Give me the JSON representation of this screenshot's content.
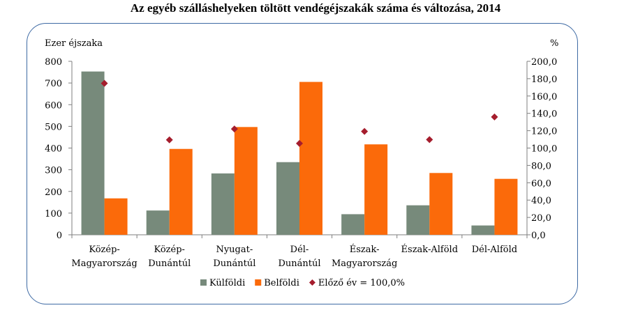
{
  "chart_data": {
    "type": "bar",
    "title": "Az egyéb szálláshelyeken töltött vendégéjszakák száma és változása, 2014",
    "ylabel_left": "Ezer éjszaka",
    "ylabel_right": "%",
    "categories": [
      [
        "Közép-",
        "Magyarország"
      ],
      [
        "Közép-",
        "Dunántúl"
      ],
      [
        "Nyugat-",
        "Dunántúl"
      ],
      [
        "Dél-",
        "Dunántúl"
      ],
      [
        "Észak-",
        "Magyarország"
      ],
      [
        "Észak-Alföld"
      ],
      [
        "Dél-Alföld"
      ]
    ],
    "series": [
      {
        "name": "Külföldi",
        "type": "bar",
        "axis": "left",
        "color": "#778a7b",
        "values": [
          753,
          112,
          283,
          335,
          95,
          136,
          43
        ]
      },
      {
        "name": "Belföldi",
        "type": "bar",
        "axis": "left",
        "color": "#fb6a0a",
        "values": [
          168,
          396,
          497,
          705,
          417,
          285,
          258
        ]
      },
      {
        "name": "Előző év = 100,0%",
        "type": "scatter",
        "axis": "right",
        "color": "#a51d2d",
        "values": [
          174.6,
          109.4,
          122,
          105.3,
          119.2,
          109.7,
          135.8
        ]
      }
    ],
    "ylim_left": [
      0,
      800
    ],
    "ylim_right": [
      0,
      200
    ],
    "yticks_left": [
      "0",
      "100",
      "200",
      "300",
      "400",
      "500",
      "600",
      "700",
      "800"
    ],
    "yticks_right": [
      "0,0",
      "20,0",
      "40,0",
      "60,0",
      "80,0",
      "100,0",
      "120,0",
      "140,0",
      "160,0",
      "180,0",
      "200,0"
    ],
    "legend_position": "bottom",
    "grid": false
  }
}
